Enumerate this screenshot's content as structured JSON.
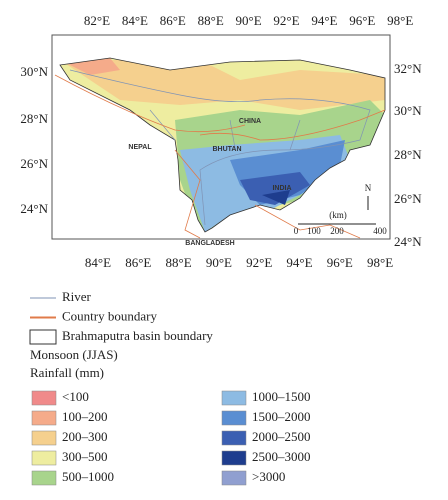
{
  "map": {
    "top_labels": [
      "82°E",
      "84°E",
      "86°E",
      "88°E",
      "90°E",
      "92°E",
      "94°E",
      "96°E",
      "98°E"
    ],
    "bottom_labels": [
      "84°E",
      "86°E",
      "88°E",
      "90°E",
      "92°E",
      "94°E",
      "96°E",
      "98°E"
    ],
    "left_labels": [
      "30°N",
      "28°N",
      "26°N",
      "24°N"
    ],
    "right_labels": [
      "32°N",
      "30°N",
      "28°N",
      "26°N",
      "24°N"
    ],
    "regions": [
      "CHINA",
      "BHUTAN",
      "NEPAL",
      "INDIA",
      "BANGLADESH"
    ],
    "scale": {
      "unit": "(km)",
      "ticks": [
        "0",
        "100",
        "200",
        "400"
      ],
      "north": "N"
    }
  },
  "legend": {
    "lines": [
      {
        "label": "River",
        "color": "#7f93b5"
      },
      {
        "label": "Country boundary",
        "color": "#e07b4a"
      },
      {
        "label": "Brahmaputra basin boundary",
        "color": "#333333"
      }
    ],
    "title": [
      "Monsoon (JJAS)",
      "Rainfall (mm)"
    ],
    "classes": [
      {
        "label": "<100",
        "color": "#f08a8a"
      },
      {
        "label": "100–200",
        "color": "#f5ab8a"
      },
      {
        "label": "200–300",
        "color": "#f5d08e"
      },
      {
        "label": "300–500",
        "color": "#eeeda0"
      },
      {
        "label": "500–1000",
        "color": "#a8d48c"
      },
      {
        "label": "1000–1500",
        "color": "#8dbbe3"
      },
      {
        "label": "1500–2000",
        "color": "#5a8ed2"
      },
      {
        "label": "2000–2500",
        "color": "#3b5fb2"
      },
      {
        "label": "2500–3000",
        "color": "#1e3d8e"
      },
      {
        "label": ">3000",
        "color": "#909fd0"
      }
    ]
  }
}
